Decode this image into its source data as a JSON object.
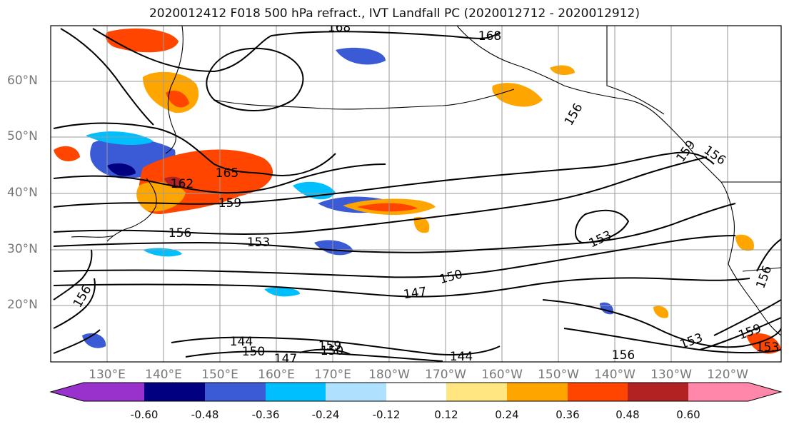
{
  "title": "2020012412 F018 500 hPa refract., IVT Landfall PC (2020012712 - 2020012912)",
  "lat_labels": [
    "60°N",
    "50°N",
    "40°N",
    "30°N",
    "20°N"
  ],
  "lon_labels": [
    "130°E",
    "140°E",
    "150°E",
    "160°E",
    "170°E",
    "180°W",
    "170°W",
    "160°W",
    "150°W",
    "140°W",
    "130°W",
    "120°W"
  ],
  "contour_labels": [
    "168",
    "168",
    "165",
    "162",
    "159",
    "156",
    "156",
    "156",
    "159",
    "153",
    "153",
    "150",
    "147",
    "144",
    "144",
    "147",
    "150",
    "150",
    "156",
    "159",
    "156",
    "153",
    "153",
    "156",
    "159"
  ],
  "colorbar": {
    "ticks": [
      "-0.60",
      "-0.48",
      "-0.36",
      "-0.24",
      "-0.12",
      "0.12",
      "0.24",
      "0.36",
      "0.48",
      "0.60"
    ],
    "colors": [
      "#9932cc",
      "#000080",
      "#3b5bd6",
      "#00bfff",
      "#afe1ff",
      "#ffffff",
      "#ffe680",
      "#ffa500",
      "#ff4500",
      "#b22222",
      "#ff88aa"
    ]
  }
}
